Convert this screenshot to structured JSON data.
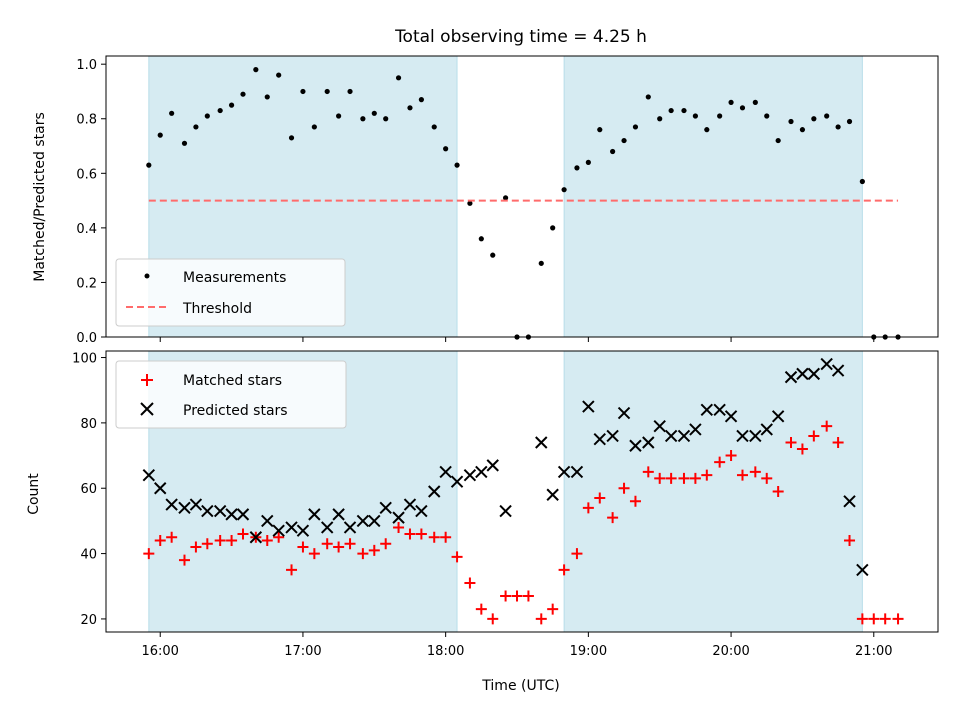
{
  "chart_data": {
    "title": "Total observing time = 4.25 h",
    "xlabel": "Time (UTC)",
    "x_ticks": [
      "16:00",
      "17:00",
      "18:00",
      "19:00",
      "20:00",
      "21:00"
    ],
    "x_range_hours": [
      15.62,
      21.45
    ],
    "shaded_spans": [
      [
        15.92,
        18.08
      ],
      [
        18.83,
        20.92
      ]
    ],
    "span_color": "#add8e6",
    "panels": [
      {
        "type": "scatter",
        "ylabel": "Matched/Predicted stars",
        "ylim": [
          0,
          1.03
        ],
        "yticks": [
          "0.0",
          "0.2",
          "0.4",
          "0.6",
          "0.8",
          "1.0"
        ],
        "legend": "lower-left",
        "series": [
          {
            "name": "Measurements",
            "marker": "dot",
            "color": "#000000",
            "x": [
              15.92,
              16.0,
              16.08,
              16.17,
              16.25,
              16.33,
              16.42,
              16.5,
              16.58,
              16.67,
              16.75,
              16.83,
              16.92,
              17.0,
              17.08,
              17.17,
              17.25,
              17.33,
              17.42,
              17.5,
              17.58,
              17.67,
              17.75,
              17.83,
              17.92,
              18.0,
              18.08,
              18.17,
              18.25,
              18.33,
              18.42,
              18.5,
              18.58,
              18.67,
              18.75,
              18.83,
              18.92,
              19.0,
              19.08,
              19.17,
              19.25,
              19.33,
              19.42,
              19.5,
              19.58,
              19.67,
              19.75,
              19.83,
              19.92,
              20.0,
              20.08,
              20.17,
              20.25,
              20.33,
              20.42,
              20.5,
              20.58,
              20.67,
              20.75,
              20.83,
              20.92,
              21.0,
              21.08,
              21.17
            ],
            "y": [
              0.63,
              0.74,
              0.82,
              0.71,
              0.77,
              0.81,
              0.83,
              0.85,
              0.89,
              0.98,
              0.88,
              0.96,
              0.73,
              0.9,
              0.77,
              0.9,
              0.81,
              0.9,
              0.8,
              0.82,
              0.8,
              0.95,
              0.84,
              0.87,
              0.77,
              0.69,
              0.63,
              0.49,
              0.36,
              0.3,
              0.51,
              0.0,
              0.0,
              0.27,
              0.4,
              0.54,
              0.62,
              0.64,
              0.76,
              0.68,
              0.72,
              0.77,
              0.88,
              0.8,
              0.83,
              0.83,
              0.81,
              0.76,
              0.81,
              0.86,
              0.84,
              0.86,
              0.81,
              0.72,
              0.79,
              0.76,
              0.8,
              0.81,
              0.77,
              0.79,
              0.57,
              0.0,
              0.0,
              0.0
            ]
          },
          {
            "name": "Threshold",
            "marker": "dashed-line",
            "color": "#ff6b6b",
            "x": [
              15.92,
              21.17
            ],
            "y": [
              0.5,
              0.5
            ]
          }
        ]
      },
      {
        "type": "scatter",
        "ylabel": "Count",
        "ylim": [
          16,
          102
        ],
        "yticks": [
          "20",
          "40",
          "60",
          "80",
          "100"
        ],
        "legend": "upper-left",
        "series": [
          {
            "name": "Matched stars",
            "marker": "plus",
            "color": "#ff0000",
            "x": [
              15.92,
              16.0,
              16.08,
              16.17,
              16.25,
              16.33,
              16.42,
              16.5,
              16.58,
              16.67,
              16.75,
              16.83,
              16.92,
              17.0,
              17.08,
              17.17,
              17.25,
              17.33,
              17.42,
              17.5,
              17.58,
              17.67,
              17.75,
              17.83,
              17.92,
              18.0,
              18.08,
              18.17,
              18.25,
              18.33,
              18.42,
              18.5,
              18.58,
              18.67,
              18.75,
              18.83,
              18.92,
              19.0,
              19.08,
              19.17,
              19.25,
              19.33,
              19.42,
              19.5,
              19.58,
              19.67,
              19.75,
              19.83,
              19.92,
              20.0,
              20.08,
              20.17,
              20.25,
              20.33,
              20.42,
              20.5,
              20.58,
              20.67,
              20.75,
              20.83,
              20.92,
              21.0,
              21.08,
              21.17
            ],
            "y": [
              40,
              44,
              45,
              38,
              42,
              43,
              44,
              44,
              46,
              45,
              44,
              45,
              35,
              42,
              40,
              43,
              42,
              43,
              40,
              41,
              43,
              48,
              46,
              46,
              45,
              45,
              39,
              31,
              23,
              20,
              27,
              27,
              27,
              20,
              23,
              35,
              40,
              54,
              57,
              51,
              60,
              56,
              65,
              63,
              63,
              63,
              63,
              64,
              68,
              70,
              64,
              65,
              63,
              59,
              74,
              72,
              76,
              79,
              74,
              44,
              20,
              20,
              20,
              20
            ]
          },
          {
            "name": "Predicted stars",
            "marker": "x",
            "color": "#000000",
            "x": [
              15.92,
              16.0,
              16.08,
              16.17,
              16.25,
              16.33,
              16.42,
              16.5,
              16.58,
              16.67,
              16.75,
              16.83,
              16.92,
              17.0,
              17.08,
              17.17,
              17.25,
              17.33,
              17.42,
              17.5,
              17.58,
              17.67,
              17.75,
              17.83,
              17.92,
              18.0,
              18.08,
              18.17,
              18.25,
              18.33,
              18.42,
              18.67,
              18.75,
              18.83,
              18.92,
              19.0,
              19.08,
              19.17,
              19.25,
              19.33,
              19.42,
              19.5,
              19.58,
              19.67,
              19.75,
              19.83,
              19.92,
              20.0,
              20.08,
              20.17,
              20.25,
              20.33,
              20.42,
              20.5,
              20.58,
              20.67,
              20.75,
              20.83,
              20.92
            ],
            "y": [
              64,
              60,
              55,
              54,
              55,
              53,
              53,
              52,
              52,
              45,
              50,
              47,
              48,
              47,
              52,
              48,
              52,
              48,
              50,
              50,
              54,
              51,
              55,
              53,
              59,
              65,
              62,
              64,
              65,
              67,
              53,
              74,
              58,
              65,
              65,
              85,
              75,
              76,
              83,
              73,
              74,
              79,
              76,
              76,
              78,
              84,
              84,
              82,
              76,
              76,
              78,
              82,
              94,
              95,
              95,
              98,
              96,
              56,
              35
            ]
          }
        ]
      }
    ]
  }
}
